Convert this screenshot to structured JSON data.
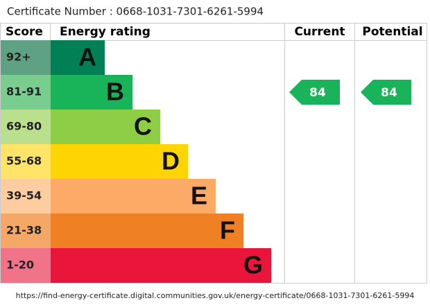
{
  "certificate": "Certificate Number : 0668-1031-7301-6261-5994",
  "headers": {
    "score": "Score",
    "rating": "Energy rating",
    "current": "Current",
    "potential": "Potential"
  },
  "bands": [
    {
      "score": "92+",
      "letter": "A",
      "color": "#008054",
      "tint": "#5fa283"
    },
    {
      "score": "81-91",
      "letter": "B",
      "color": "#19b459",
      "tint": "#78cd8f"
    },
    {
      "score": "69-80",
      "letter": "C",
      "color": "#8dce46",
      "tint": "#bbe08d"
    },
    {
      "score": "55-68",
      "letter": "D",
      "color": "#ffd500",
      "tint": "#ffe467"
    },
    {
      "score": "39-54",
      "letter": "E",
      "color": "#fcaa65",
      "tint": "#fdcca1"
    },
    {
      "score": "21-38",
      "letter": "F",
      "color": "#ef8023",
      "tint": "#f4a767"
    },
    {
      "score": "1-20",
      "letter": "G",
      "color": "#e9153b",
      "tint": "#f0738a"
    }
  ],
  "current": 84,
  "potential": 84,
  "url": "https://find-energy-certificate.digital.communities.gov.uk/energy-certificate/0668-1031-7301-6261-5994"
}
